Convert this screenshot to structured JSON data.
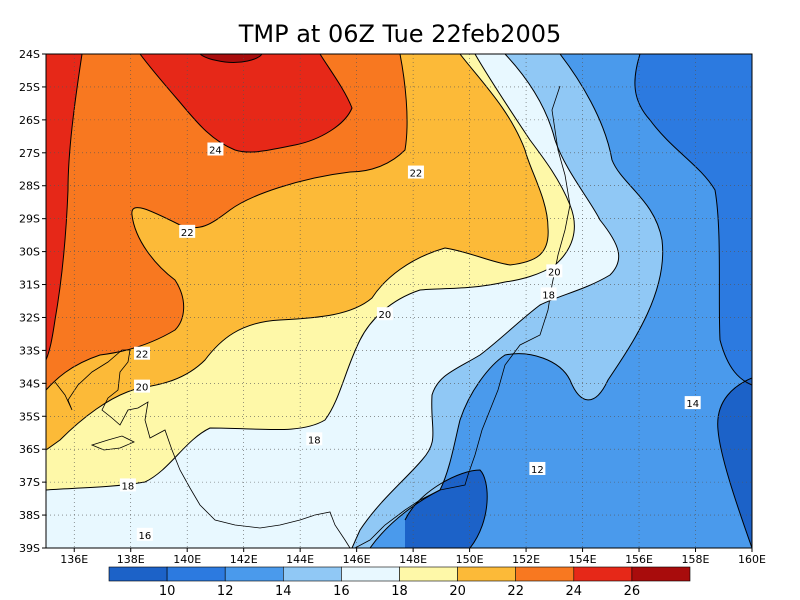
{
  "chart_data": {
    "type": "filled-contour",
    "title": "TMP at 06Z Tue 22feb2005",
    "x_axis": {
      "labels": [
        "136E",
        "138E",
        "140E",
        "142E",
        "144E",
        "146E",
        "148E",
        "150E",
        "152E",
        "154E",
        "156E",
        "158E",
        "160E"
      ],
      "values": [
        136,
        138,
        140,
        142,
        144,
        146,
        148,
        150,
        152,
        154,
        156,
        158,
        160
      ],
      "range": [
        135,
        160
      ]
    },
    "y_axis": {
      "labels": [
        "24S",
        "25S",
        "26S",
        "27S",
        "28S",
        "29S",
        "30S",
        "31S",
        "32S",
        "33S",
        "34S",
        "35S",
        "36S",
        "37S",
        "38S",
        "39S"
      ],
      "values": [
        -24,
        -25,
        -26,
        -27,
        -28,
        -29,
        -30,
        -31,
        -32,
        -33,
        -34,
        -35,
        -36,
        -37,
        -38,
        -39
      ],
      "range": [
        -39,
        -24
      ]
    },
    "grid": true,
    "colorbar": {
      "levels": [
        10,
        12,
        14,
        16,
        18,
        20,
        22,
        24,
        26
      ],
      "labels": [
        "10",
        "12",
        "14",
        "16",
        "18",
        "20",
        "22",
        "24",
        "26"
      ],
      "colors": [
        "#1c62c8",
        "#2c7ae0",
        "#4a9aec",
        "#90c8f5",
        "#e8f8ff",
        "#fef8a8",
        "#fcba38",
        "#f87820",
        "#e62818",
        "#a80c0c"
      ]
    },
    "contour_labels": [
      {
        "text": "24",
        "lon": 141.0,
        "lat": -26.9
      },
      {
        "text": "22",
        "lon": 148.1,
        "lat": -27.6
      },
      {
        "text": "22",
        "lon": 140.0,
        "lat": -29.4
      },
      {
        "text": "22",
        "lon": 138.4,
        "lat": -33.1
      },
      {
        "text": "20",
        "lon": 153.0,
        "lat": -30.6
      },
      {
        "text": "20",
        "lon": 147.0,
        "lat": -31.9
      },
      {
        "text": "20",
        "lon": 138.4,
        "lat": -34.1
      },
      {
        "text": "18",
        "lon": 152.8,
        "lat": -31.3
      },
      {
        "text": "18",
        "lon": 144.5,
        "lat": -35.7
      },
      {
        "text": "18",
        "lon": 137.9,
        "lat": -37.1
      },
      {
        "text": "16",
        "lon": 138.5,
        "lat": -38.6
      },
      {
        "text": "14",
        "lon": 157.9,
        "lat": -34.6
      },
      {
        "text": "12",
        "lon": 152.4,
        "lat": -36.6
      }
    ]
  }
}
